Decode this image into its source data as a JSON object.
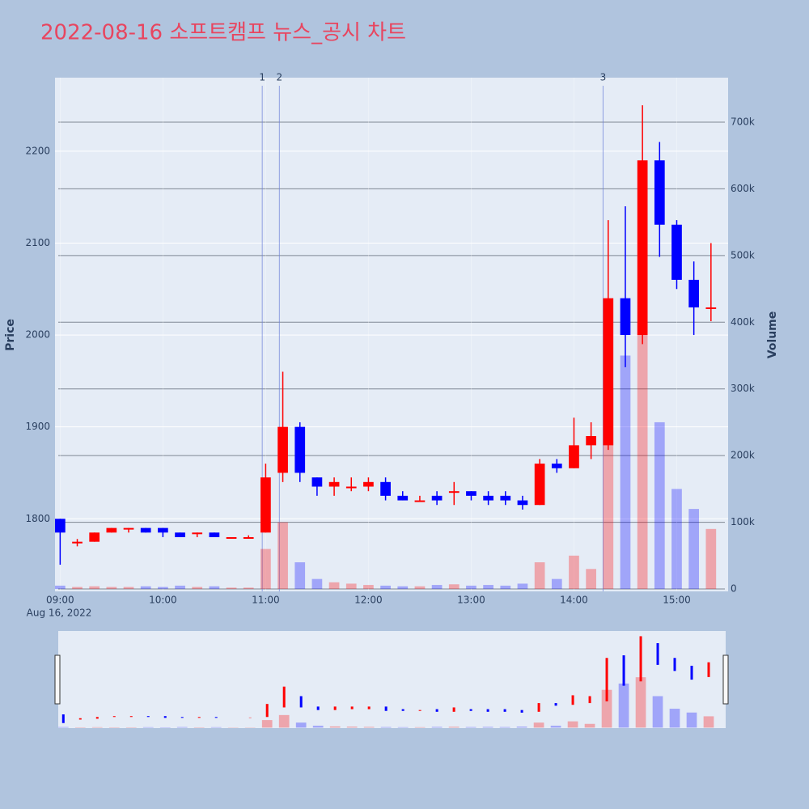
{
  "chart_data": {
    "type": "candlestick",
    "title": "2022-08-16 소프트캠프 뉴스_공시 차트",
    "y_title": "Price",
    "y2_title": "Volume",
    "x_date_label": "Aug 16, 2022",
    "increasing_color": "#ff0000",
    "decreasing_color": "#0000ff",
    "x": [
      "2022-08-16 09:00",
      "2022-08-16 09:10",
      "2022-08-16 09:20",
      "2022-08-16 09:30",
      "2022-08-16 09:40",
      "2022-08-16 09:50",
      "2022-08-16 10:00",
      "2022-08-16 10:10",
      "2022-08-16 10:20",
      "2022-08-16 10:30",
      "2022-08-16 10:40",
      "2022-08-16 10:50",
      "2022-08-16 11:00",
      "2022-08-16 11:10",
      "2022-08-16 11:20",
      "2022-08-16 11:30",
      "2022-08-16 11:40",
      "2022-08-16 11:50",
      "2022-08-16 12:00",
      "2022-08-16 12:10",
      "2022-08-16 12:20",
      "2022-08-16 12:30",
      "2022-08-16 12:40",
      "2022-08-16 12:50",
      "2022-08-16 13:00",
      "2022-08-16 13:10",
      "2022-08-16 13:20",
      "2022-08-16 13:30",
      "2022-08-16 13:40",
      "2022-08-16 13:50",
      "2022-08-16 14:00",
      "2022-08-16 14:10",
      "2022-08-16 14:20",
      "2022-08-16 14:30",
      "2022-08-16 14:40",
      "2022-08-16 14:50",
      "2022-08-16 15:00",
      "2022-08-16 15:10",
      "2022-08-16 15:20"
    ],
    "open": [
      1800,
      1775,
      1775,
      1785,
      1790,
      1790,
      1790,
      1785,
      1785,
      1785,
      1780,
      1780,
      1785,
      1850,
      1900,
      1845,
      1835,
      1835,
      1835,
      1840,
      1825,
      1820,
      1825,
      1830,
      1830,
      1825,
      1825,
      1820,
      1815,
      1860,
      1855,
      1880,
      1880,
      2040,
      2000,
      2190,
      2120,
      2060,
      2030
    ],
    "high": [
      1800,
      1778,
      1785,
      1790,
      1790,
      1790,
      1790,
      1785,
      1785,
      1785,
      1780,
      1782,
      1860,
      1960,
      1905,
      1845,
      1845,
      1845,
      1845,
      1845,
      1830,
      1825,
      1830,
      1840,
      1830,
      1830,
      1830,
      1825,
      1865,
      1865,
      1910,
      1905,
      2125,
      2140,
      2250,
      2210,
      2125,
      2080,
      2100
    ],
    "low": [
      1750,
      1770,
      1775,
      1785,
      1785,
      1785,
      1780,
      1780,
      1780,
      1780,
      1780,
      1780,
      1785,
      1840,
      1840,
      1825,
      1825,
      1830,
      1830,
      1820,
      1820,
      1820,
      1815,
      1815,
      1820,
      1815,
      1815,
      1810,
      1815,
      1850,
      1855,
      1865,
      1875,
      1965,
      1990,
      2085,
      2050,
      2000,
      2015
    ],
    "close": [
      1785,
      1775,
      1785,
      1790,
      1790,
      1785,
      1785,
      1780,
      1785,
      1780,
      1780,
      1780,
      1845,
      1900,
      1850,
      1835,
      1840,
      1835,
      1840,
      1825,
      1820,
      1820,
      1820,
      1830,
      1825,
      1820,
      1820,
      1815,
      1860,
      1855,
      1880,
      1890,
      2040,
      2000,
      2190,
      2120,
      2060,
      2030,
      2030
    ],
    "volume": [
      5000,
      3000,
      4000,
      3000,
      3000,
      4000,
      3000,
      5000,
      3000,
      4000,
      2000,
      2000,
      60000,
      100000,
      40000,
      15000,
      10000,
      8000,
      6000,
      5000,
      4000,
      4000,
      6000,
      7000,
      5000,
      6000,
      5000,
      8000,
      40000,
      15000,
      50000,
      30000,
      300000,
      350000,
      400000,
      250000,
      150000,
      120000,
      90000
    ],
    "annotations": [
      {
        "x": "2022-08-16 10:58",
        "label": "1"
      },
      {
        "x": "2022-08-16 11:08",
        "label": "2"
      },
      {
        "x": "2022-08-16 14:17",
        "label": "3"
      }
    ],
    "xlim": [
      "2022-08-16 08:57",
      "2022-08-16 15:30"
    ],
    "xticks": [
      {
        "value": "2022-08-16 09:00",
        "label": "09:00"
      },
      {
        "value": "2022-08-16 10:00",
        "label": "10:00"
      },
      {
        "value": "2022-08-16 11:00",
        "label": "11:00"
      },
      {
        "value": "2022-08-16 12:00",
        "label": "12:00"
      },
      {
        "value": "2022-08-16 13:00",
        "label": "13:00"
      },
      {
        "value": "2022-08-16 14:00",
        "label": "14:00"
      },
      {
        "value": "2022-08-16 15:00",
        "label": "15:00"
      }
    ],
    "ylim": [
      1721,
      2280
    ],
    "yticks": [
      1800,
      1900,
      2000,
      2100,
      2200
    ],
    "y2lim": [
      -3600,
      766700
    ],
    "y2ticks": [
      0,
      {
        "value": 100000,
        "label": "100k"
      },
      {
        "value": 200000,
        "label": "200k"
      },
      {
        "value": 300000,
        "label": "300k"
      },
      {
        "value": 400000,
        "label": "400k"
      },
      {
        "value": 500000,
        "label": "500k"
      },
      {
        "value": 600000,
        "label": "600k"
      },
      {
        "value": 700000,
        "label": "700k"
      }
    ],
    "grid": true
  }
}
